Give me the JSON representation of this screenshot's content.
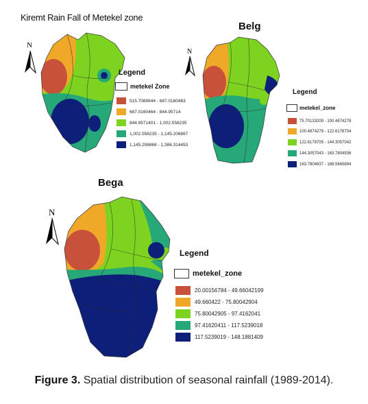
{
  "colors": {
    "class1": "#c8513c",
    "class2": "#f0a828",
    "class3": "#7ed321",
    "class4": "#27a878",
    "class5": "#0d1f78",
    "outline": "#333333"
  },
  "maps": {
    "kiremt": {
      "title": "Kiremt Rain Fall of Metekel zone",
      "north": "N",
      "legend_title": "Legend",
      "zone_label": "metekel Zone",
      "classes": [
        "515.7089644 - 687.0160463",
        "687.0160464 - 844.95714",
        "844.9571401 - 1,002.558235",
        "1,002.558235 - 1,145.206867",
        "1,145.206868 - 1,386.314453"
      ]
    },
    "belg": {
      "title": "Belg",
      "north": "N",
      "legend_title": "Legend",
      "zone_label": "metekel_zone",
      "classes": [
        "75.70133209 - 100.4874278",
        "100.4874279 - 122.6178704",
        "122.6178705 - 144.3057042",
        "144.3057043 - 163.7804936",
        "163.7804937 - 188.5665894"
      ]
    },
    "bega": {
      "title": "Bega",
      "north": "N",
      "legend_title": "Legend",
      "zone_label": "metekel_zone",
      "classes": [
        "20.00156784 - 49.66042199",
        "49.660422 - 75.80042904",
        "75.80042905 - 97.4162041",
        "97.41620411 - 117.5239018",
        "117.5239019 - 148.1881409"
      ]
    }
  },
  "caption": {
    "label": "Figure 3.",
    "text": " Spatial distribution of seasonal rainfall (1989-2014)."
  }
}
